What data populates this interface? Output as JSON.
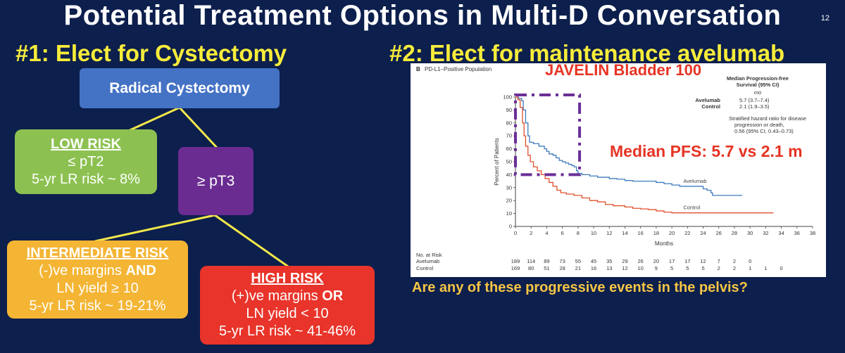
{
  "slide": {
    "title": "Potential Treatment Options in Multi-D Conversation",
    "number": "12",
    "left_heading": "#1: Elect for Cystectomy",
    "right_heading": "#2: Elect for maintenance avelumab",
    "bottom_question": "Are any of these progressive events in the pelvis?"
  },
  "flow": {
    "root": "Radical Cystectomy",
    "pt3": "≥ pT3",
    "low": {
      "heading": "LOW RISK",
      "line1": "≤ pT2",
      "line2": "5-yr LR risk ~ 8%"
    },
    "intermediate": {
      "heading": "INTERMEDIATE RISK",
      "line1a": "(-)ve margins ",
      "line1b": "AND",
      "line2": "LN yield ≥ 10",
      "line3": "5-yr LR risk ~ 19-21%"
    },
    "high": {
      "heading": "HIGH RISK",
      "line1a": "(+)ve margins ",
      "line1b": "OR",
      "line2": "LN yield < 10",
      "line3": "5-yr LR risk ~ 41-46%"
    }
  },
  "colors": {
    "background": "#0c1f4d",
    "root_box": "#4472c4",
    "low_box": "#8cc151",
    "pt3_box": "#6a2c91",
    "intermediate_box": "#f4b534",
    "high_box": "#e8342a",
    "connector": "#f3e84a",
    "avelumab": "#3c7bbd",
    "control": "#e0502d",
    "annotation": "#e53424",
    "dashed_box": "#6b2f96"
  },
  "chart_data": {
    "type": "line",
    "panel_label": "B",
    "population": "PD-L1–Positive Population",
    "trial": "JAVELIN Bladder 100",
    "ylabel": "Percent of Patients",
    "xlabel": "Months",
    "xlim": [
      0,
      38
    ],
    "ylim": [
      0,
      100
    ],
    "x_ticks": [
      0,
      2,
      4,
      6,
      8,
      10,
      12,
      14,
      16,
      18,
      20,
      22,
      24,
      26,
      28,
      30,
      32,
      34,
      36,
      38
    ],
    "y_ticks": [
      0,
      10,
      20,
      30,
      40,
      50,
      60,
      70,
      80,
      90,
      100
    ],
    "series": [
      {
        "name": "Avelumab",
        "points": [
          [
            0,
            100
          ],
          [
            0.4,
            99
          ],
          [
            0.8,
            97
          ],
          [
            1.0,
            90
          ],
          [
            1.3,
            80
          ],
          [
            1.6,
            70
          ],
          [
            1.8,
            65
          ],
          [
            2.3,
            64
          ],
          [
            3.0,
            62
          ],
          [
            3.7,
            60
          ],
          [
            4.0,
            58
          ],
          [
            4.3,
            56
          ],
          [
            4.8,
            55
          ],
          [
            5.2,
            53
          ],
          [
            5.6,
            51
          ],
          [
            6.0,
            50
          ],
          [
            6.4,
            49
          ],
          [
            6.8,
            48
          ],
          [
            7.2,
            47
          ],
          [
            7.5,
            46
          ],
          [
            7.8,
            43
          ],
          [
            8.0,
            41
          ],
          [
            8.5,
            40
          ],
          [
            9.5,
            39
          ],
          [
            10.5,
            38
          ],
          [
            12,
            37
          ],
          [
            13,
            36.5
          ],
          [
            14,
            35.5
          ],
          [
            15,
            35
          ],
          [
            16,
            35
          ],
          [
            18,
            34
          ],
          [
            19,
            33
          ],
          [
            20,
            32
          ],
          [
            21,
            31
          ],
          [
            22,
            31
          ],
          [
            24,
            29
          ],
          [
            24.5,
            28
          ],
          [
            25,
            26
          ],
          [
            25.2,
            24
          ],
          [
            26,
            24
          ],
          [
            28,
            24
          ],
          [
            29,
            24
          ]
        ]
      },
      {
        "name": "Control",
        "points": [
          [
            0,
            100
          ],
          [
            0.3,
            98
          ],
          [
            0.6,
            92
          ],
          [
            0.9,
            80
          ],
          [
            1.1,
            70
          ],
          [
            1.3,
            62
          ],
          [
            1.6,
            55
          ],
          [
            1.9,
            50
          ],
          [
            2.3,
            46
          ],
          [
            2.8,
            43
          ],
          [
            3.3,
            40
          ],
          [
            3.8,
            37
          ],
          [
            4.3,
            34
          ],
          [
            4.8,
            31
          ],
          [
            5.3,
            28
          ],
          [
            5.8,
            26
          ],
          [
            6.5,
            25
          ],
          [
            7.5,
            24
          ],
          [
            8.5,
            22
          ],
          [
            9.5,
            20
          ],
          [
            10.5,
            19
          ],
          [
            11.5,
            17
          ],
          [
            12.5,
            16
          ],
          [
            14,
            15
          ],
          [
            15,
            14
          ],
          [
            16,
            13.5
          ],
          [
            17,
            13
          ],
          [
            18,
            12
          ],
          [
            19,
            11
          ],
          [
            20,
            10.5
          ],
          [
            22,
            10.5
          ],
          [
            24,
            10.5
          ],
          [
            26,
            10.5
          ],
          [
            28,
            10.5
          ],
          [
            30,
            10.5
          ],
          [
            32,
            10.5
          ],
          [
            33,
            10.5
          ]
        ]
      }
    ],
    "curve_labels": {
      "Avelumab": [
        6,
        14
      ],
      "Control": [
        8,
        12
      ]
    },
    "legend_box": {
      "title": "Median Progression-free Survival (95% CI)",
      "unit": "mo",
      "rows": [
        {
          "name": "Avelumab",
          "value": "5.7 (3.7–7.4)"
        },
        {
          "name": "Control",
          "value": "2.1 (1.9–3.5)"
        }
      ],
      "hr_text": "Stratified hazard ratio for disease progression or death, 0.56 (95% CI, 0.43–0.73)"
    },
    "annotation": "Median PFS: 5.7 vs 2.1 m",
    "highlight_region": {
      "x": [
        0,
        8.2
      ],
      "y": [
        40,
        100
      ]
    },
    "risk_table": {
      "title": "No. at Risk",
      "rows": [
        {
          "name": "Avelumab",
          "values": [
            189,
            114,
            89,
            73,
            55,
            45,
            35,
            29,
            26,
            20,
            17,
            17,
            12,
            7,
            2,
            0
          ]
        },
        {
          "name": "Control",
          "values": [
            169,
            80,
            51,
            28,
            21,
            16,
            13,
            12,
            10,
            9,
            5,
            5,
            5,
            2,
            2,
            1,
            1,
            0
          ]
        }
      ]
    }
  }
}
